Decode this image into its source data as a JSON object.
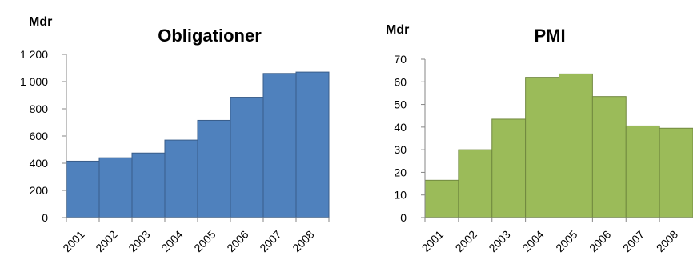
{
  "chart_data": [
    {
      "type": "bar",
      "title": "Obligationer",
      "ylabel": "Mdr",
      "xlabel": "",
      "categories": [
        "2001",
        "2002",
        "2003",
        "2004",
        "2005",
        "2006",
        "2007",
        "2008"
      ],
      "values": [
        415,
        440,
        475,
        570,
        715,
        885,
        1060,
        1070
      ],
      "ylim": [
        0,
        1200
      ],
      "yticks": [
        0,
        200,
        400,
        600,
        800,
        1000,
        1200
      ],
      "ytick_labels": [
        "0",
        "200",
        "400",
        "600",
        "800",
        "1 000",
        "1 200"
      ],
      "color": "#4f81bd",
      "edge_color": "#385d8a",
      "grid": false,
      "legend": "none"
    },
    {
      "type": "bar",
      "title": "PMI",
      "ylabel": "Mdr",
      "xlabel": "",
      "categories": [
        "2001",
        "2002",
        "2003",
        "2004",
        "2005",
        "2006",
        "2007",
        "2008"
      ],
      "values": [
        16.5,
        30,
        43.5,
        62,
        63.5,
        53.5,
        40.5,
        39.5
      ],
      "ylim": [
        0,
        70
      ],
      "yticks": [
        0,
        10,
        20,
        30,
        40,
        50,
        60,
        70
      ],
      "ytick_labels": [
        "0",
        "10",
        "20",
        "30",
        "40",
        "50",
        "60",
        "70"
      ],
      "color": "#9bbb59",
      "edge_color": "#71893f",
      "grid": false,
      "legend": "none"
    }
  ]
}
